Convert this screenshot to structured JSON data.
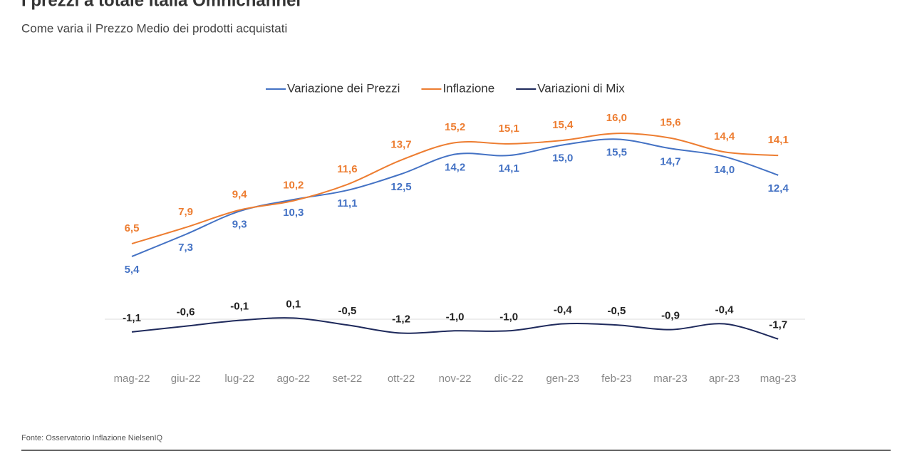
{
  "chart_data": {
    "type": "line",
    "title": "I prezzi a totale Italia Omnichannel",
    "subtitle": "Come varia il Prezzo Medio dei prodotti acquistati",
    "source": "Fonte: Osservatorio Inflazione NielsenIQ",
    "categories": [
      "mag-22",
      "giu-22",
      "lug-22",
      "ago-22",
      "set-22",
      "ott-22",
      "nov-22",
      "dic-22",
      "gen-23",
      "feb-23",
      "mar-23",
      "apr-23",
      "mag-23"
    ],
    "ylim": [
      -5,
      18
    ],
    "legend": "top",
    "series": [
      {
        "name": "Variazione dei Prezzi",
        "color": "#4472c4",
        "values": [
          5.4,
          7.3,
          9.3,
          10.3,
          11.1,
          12.5,
          14.2,
          14.1,
          15.0,
          15.5,
          14.7,
          14.0,
          12.4
        ],
        "value_labels": [
          "5,4",
          "7,3",
          "9,3",
          "10,3",
          "11,1",
          "12,5",
          "14,2",
          "14,1",
          "15,0",
          "15,5",
          "14,7",
          "14,0",
          "12,4"
        ]
      },
      {
        "name": "Inflazione",
        "color": "#ed7d31",
        "values": [
          6.5,
          7.9,
          9.4,
          10.2,
          11.6,
          13.7,
          15.2,
          15.1,
          15.4,
          16.0,
          15.6,
          14.4,
          14.1
        ],
        "value_labels": [
          "6,5",
          "7,9",
          "9,4",
          "10,2",
          "11,6",
          "13,7",
          "15,2",
          "15,1",
          "15,4",
          "16,0",
          "15,6",
          "14,4",
          "14,1"
        ]
      },
      {
        "name": "Variazioni di Mix",
        "color": "#1f2a5c",
        "values": [
          -1.1,
          -0.6,
          -0.1,
          0.1,
          -0.5,
          -1.2,
          -1.0,
          -1.0,
          -0.4,
          -0.5,
          -0.9,
          -0.4,
          -1.7
        ],
        "value_labels": [
          "-1,1",
          "-0,6",
          "-0,1",
          "0,1",
          "-0,5",
          "-1,2",
          "-1,0",
          "-1,0",
          "-0,4",
          "-0,5",
          "-0,9",
          "-0,4",
          "-1,7"
        ]
      }
    ]
  }
}
